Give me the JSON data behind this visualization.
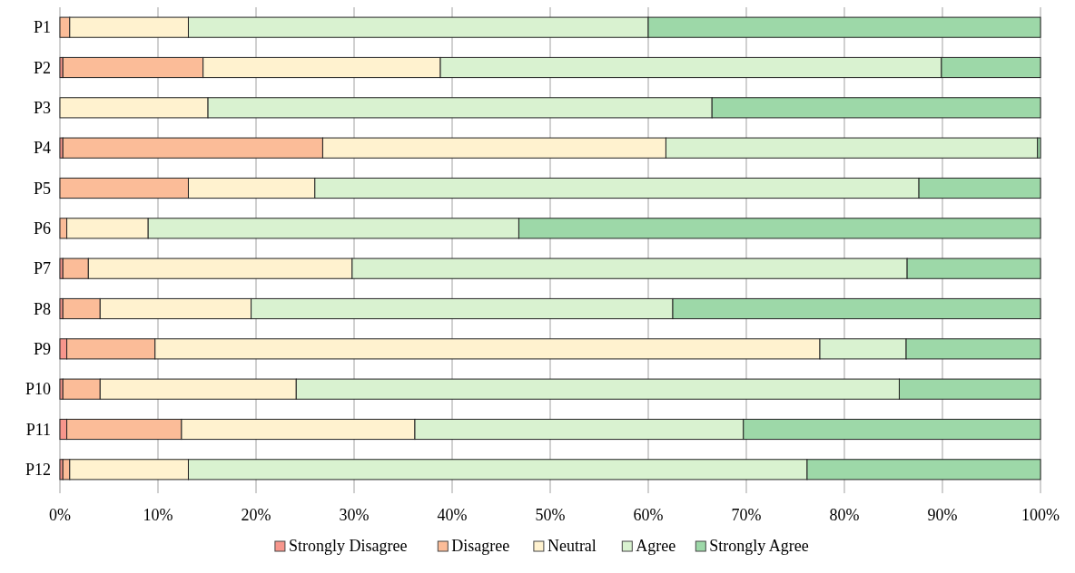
{
  "chart_data": {
    "type": "bar",
    "orientation": "horizontal",
    "stacked": true,
    "categories": [
      "P1",
      "P2",
      "P3",
      "P4",
      "P5",
      "P6",
      "P7",
      "P8",
      "P9",
      "P10",
      "P11",
      "P12"
    ],
    "series": [
      {
        "name": "Strongly Disagree",
        "color": "#f7968c",
        "values": [
          0,
          0.3,
          0,
          0.3,
          0,
          0,
          0.3,
          0.3,
          0.7,
          0.3,
          0.7,
          0.3
        ]
      },
      {
        "name": "Disagree",
        "color": "#fbbc98",
        "values": [
          1.0,
          14.3,
          0,
          26.5,
          13.1,
          0.7,
          2.6,
          3.8,
          9.0,
          3.8,
          11.7,
          0.7
        ]
      },
      {
        "name": "Neutral",
        "color": "#fff2cf",
        "values": [
          12.1,
          24.2,
          15.1,
          35.0,
          12.9,
          8.3,
          26.9,
          15.4,
          67.8,
          20.0,
          23.8,
          12.1
        ]
      },
      {
        "name": "Agree",
        "color": "#d9f2d0",
        "values": [
          46.9,
          51.1,
          51.4,
          37.9,
          61.6,
          37.8,
          56.6,
          43.0,
          8.8,
          61.5,
          33.5,
          63.1
        ]
      },
      {
        "name": "Strongly Agree",
        "color": "#9dd8a8",
        "values": [
          40.0,
          10.1,
          33.5,
          0.3,
          12.4,
          53.2,
          13.6,
          37.5,
          13.7,
          14.4,
          30.3,
          23.8
        ]
      }
    ],
    "xlim": [
      0,
      100
    ],
    "xticks": [
      {
        "value": 0,
        "label": "0%"
      },
      {
        "value": 10,
        "label": "10%"
      },
      {
        "value": 20,
        "label": "20%"
      },
      {
        "value": 30,
        "label": "30%"
      },
      {
        "value": 40,
        "label": "40%"
      },
      {
        "value": 50,
        "label": "50%"
      },
      {
        "value": 60,
        "label": "60%"
      },
      {
        "value": 70,
        "label": "70%"
      },
      {
        "value": 80,
        "label": "80%"
      },
      {
        "value": 90,
        "label": "90%"
      },
      {
        "value": 100,
        "label": "100%"
      }
    ],
    "grid": "x",
    "legend": "bottom"
  }
}
